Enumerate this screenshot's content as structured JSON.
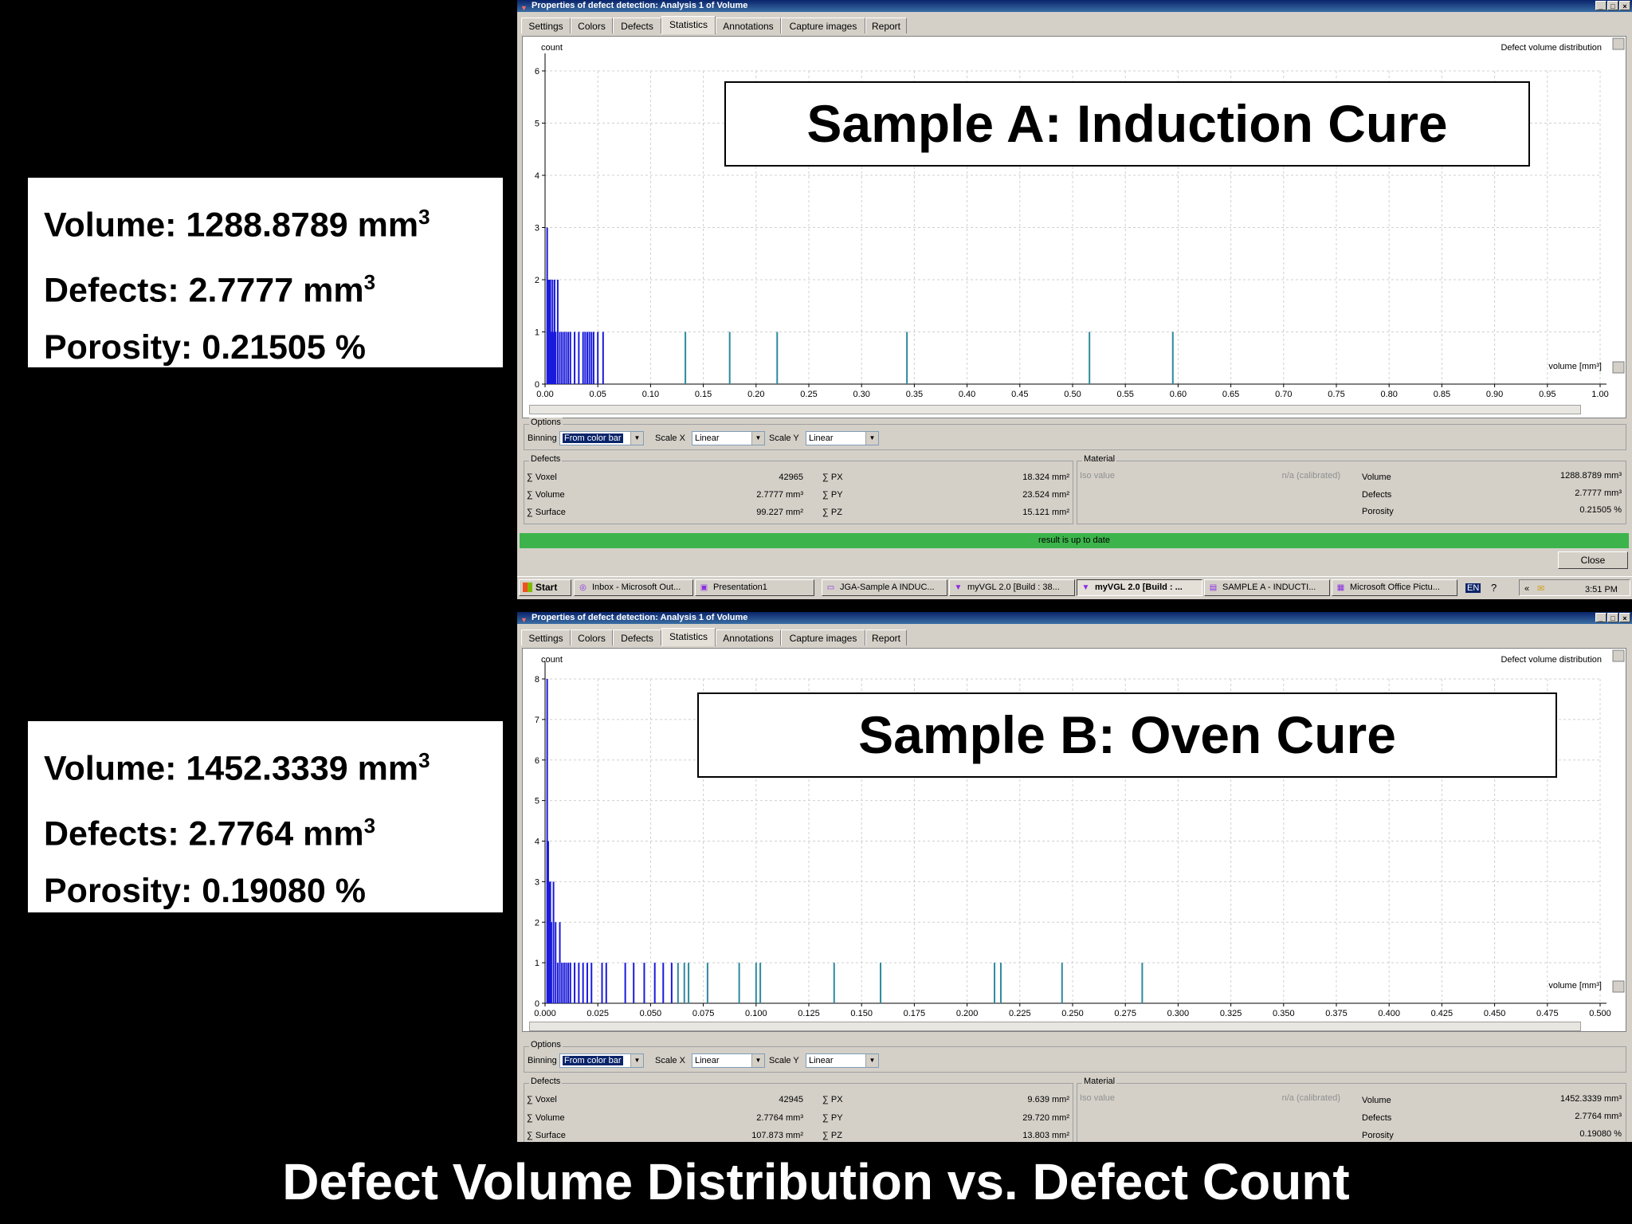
{
  "footer_title": "Defect Volume Distribution vs. Defect Count",
  "panels": [
    {
      "info": {
        "volume": "Volume: 1288.8789 mm",
        "defects": "Defects: 2.7777 mm",
        "porosity": "Porosity: 0.21505 %",
        "sup": "3"
      },
      "window": {
        "title": "Properties of defect detection: Analysis 1 of Volume",
        "tabs": [
          "Settings",
          "Colors",
          "Defects",
          "Statistics",
          "Annotations",
          "Capture images",
          "Report"
        ],
        "active_tab": "Statistics",
        "chart_heading": "Defect volume distribution",
        "overlay_title": "Sample A: Induction Cure",
        "options": {
          "label": "Options",
          "binning_label": "Binning",
          "binning_value": "From color bar",
          "scale_x_label": "Scale X",
          "scale_x_value": "Linear",
          "scale_y_label": "Scale Y",
          "scale_y_value": "Linear"
        },
        "defects_group": {
          "label": "Defects",
          "rows": [
            {
              "name": "∑ Voxel",
              "value": "42965",
              "name2": "∑ PX",
              "value2": "18.324 mm²"
            },
            {
              "name": "∑ Volume",
              "value": "2.7777 mm³",
              "name2": "∑ PY",
              "value2": "23.524 mm²"
            },
            {
              "name": "∑ Surface",
              "value": "99.227 mm²",
              "name2": "∑ PZ",
              "value2": "15.121 mm²"
            }
          ]
        },
        "material_group": {
          "label": "Material",
          "iso_label": "Iso value",
          "iso_value": "n/a (calibrated)",
          "rows": [
            {
              "name": "Volume",
              "value": "1288.8789 mm³"
            },
            {
              "name": "Defects",
              "value": "2.7777 mm³"
            },
            {
              "name": "Porosity",
              "value": "0.21505 %"
            }
          ]
        },
        "status": "result is up to date",
        "close_label": "Close"
      },
      "chart_data": {
        "type": "bar",
        "ylabel": "count",
        "xlabel": "volume [mm³]",
        "xlim": [
          0,
          1.0
        ],
        "ylim": [
          0,
          6
        ],
        "x_ticks": [
          "0.00",
          "0.05",
          "0.10",
          "0.15",
          "0.20",
          "0.25",
          "0.30",
          "0.35",
          "0.40",
          "0.45",
          "0.50",
          "0.55",
          "0.60",
          "0.65",
          "0.70",
          "0.75",
          "0.80",
          "0.85",
          "0.90",
          "0.95",
          "1.00"
        ],
        "y_ticks": [
          "0",
          "1",
          "2",
          "3",
          "4",
          "5",
          "6"
        ],
        "x": [
          0.002,
          0.003,
          0.004,
          0.005,
          0.006,
          0.007,
          0.008,
          0.009,
          0.01,
          0.012,
          0.014,
          0.016,
          0.018,
          0.02,
          0.022,
          0.024,
          0.028,
          0.032,
          0.036,
          0.038,
          0.04,
          0.042,
          0.044,
          0.046,
          0.05,
          0.055,
          0.133,
          0.175,
          0.22,
          0.343,
          0.516,
          0.595
        ],
        "values": [
          3,
          2,
          2,
          2,
          1,
          2,
          1,
          2,
          1,
          2,
          1,
          1,
          1,
          1,
          1,
          1,
          1,
          1,
          1,
          1,
          1,
          1,
          1,
          1,
          1,
          1,
          1,
          1,
          1,
          1,
          1,
          1
        ]
      }
    },
    {
      "info": {
        "volume": "Volume: 1452.3339 mm",
        "defects": "Defects: 2.7764 mm",
        "porosity": "Porosity: 0.19080 %",
        "sup": "3"
      },
      "window": {
        "title": "Properties of defect detection: Analysis 1 of Volume",
        "tabs": [
          "Settings",
          "Colors",
          "Defects",
          "Statistics",
          "Annotations",
          "Capture images",
          "Report"
        ],
        "active_tab": "Statistics",
        "chart_heading": "Defect volume distribution",
        "overlay_title": "Sample B: Oven Cure",
        "options": {
          "label": "Options",
          "binning_label": "Binning",
          "binning_value": "From color bar",
          "scale_x_label": "Scale X",
          "scale_x_value": "Linear",
          "scale_y_label": "Scale Y",
          "scale_y_value": "Linear"
        },
        "defects_group": {
          "label": "Defects",
          "rows": [
            {
              "name": "∑ Voxel",
              "value": "42945",
              "name2": "∑ PX",
              "value2": "9.639 mm²"
            },
            {
              "name": "∑ Volume",
              "value": "2.7764 mm³",
              "name2": "∑ PY",
              "value2": "29.720 mm²"
            },
            {
              "name": "∑ Surface",
              "value": "107.873 mm²",
              "name2": "∑ PZ",
              "value2": "13.803 mm²"
            }
          ]
        },
        "material_group": {
          "label": "Material",
          "iso_label": "Iso value",
          "iso_value": "n/a (calibrated)",
          "rows": [
            {
              "name": "Volume",
              "value": "1452.3339 mm³"
            },
            {
              "name": "Defects",
              "value": "2.7764 mm³"
            },
            {
              "name": "Porosity",
              "value": "0.19080 %"
            }
          ]
        }
      },
      "chart_data": {
        "type": "bar",
        "ylabel": "count",
        "xlabel": "volume [mm³]",
        "xlim": [
          0,
          0.5
        ],
        "ylim": [
          0,
          8
        ],
        "x_ticks": [
          "0.000",
          "0.025",
          "0.050",
          "0.075",
          "0.100",
          "0.125",
          "0.150",
          "0.175",
          "0.200",
          "0.225",
          "0.250",
          "0.275",
          "0.300",
          "0.325",
          "0.350",
          "0.375",
          "0.400",
          "0.425",
          "0.450",
          "0.475",
          "0.500"
        ],
        "y_ticks": [
          "0",
          "1",
          "2",
          "3",
          "4",
          "5",
          "6",
          "7",
          "8"
        ],
        "x": [
          0.001,
          0.0015,
          0.002,
          0.0025,
          0.003,
          0.004,
          0.005,
          0.006,
          0.007,
          0.008,
          0.009,
          0.01,
          0.011,
          0.012,
          0.014,
          0.016,
          0.018,
          0.02,
          0.022,
          0.027,
          0.029,
          0.038,
          0.042,
          0.047,
          0.052,
          0.056,
          0.06,
          0.063,
          0.066,
          0.068,
          0.077,
          0.092,
          0.1,
          0.102,
          0.137,
          0.159,
          0.213,
          0.216,
          0.245,
          0.283
        ],
        "values": [
          8,
          4,
          3,
          3,
          2,
          3,
          2,
          1,
          2,
          1,
          1,
          1,
          1,
          1,
          1,
          1,
          1,
          1,
          1,
          1,
          1,
          1,
          1,
          1,
          1,
          1,
          1,
          1,
          1,
          1,
          1,
          1,
          1,
          1,
          1,
          1,
          1,
          1,
          1,
          1
        ]
      }
    }
  ],
  "taskbar": {
    "start_label": "Start",
    "items": [
      "Inbox - Microsoft Out...",
      "Presentation1",
      "JGA-Sample A INDUC...",
      "myVGL 2.0 [Build : 38...",
      "myVGL 2.0 [Build : ...",
      "SAMPLE A - INDUCTI...",
      "Microsoft Office Pictu..."
    ],
    "lang": "EN",
    "time": "3:51 PM"
  },
  "colors": {
    "bar_dense": "#1a1adc",
    "bar_mid": "#2e8a9e",
    "bar_far": "#6ad04a",
    "status_green": "#3cb44b",
    "title_blue": "#0a246a"
  }
}
